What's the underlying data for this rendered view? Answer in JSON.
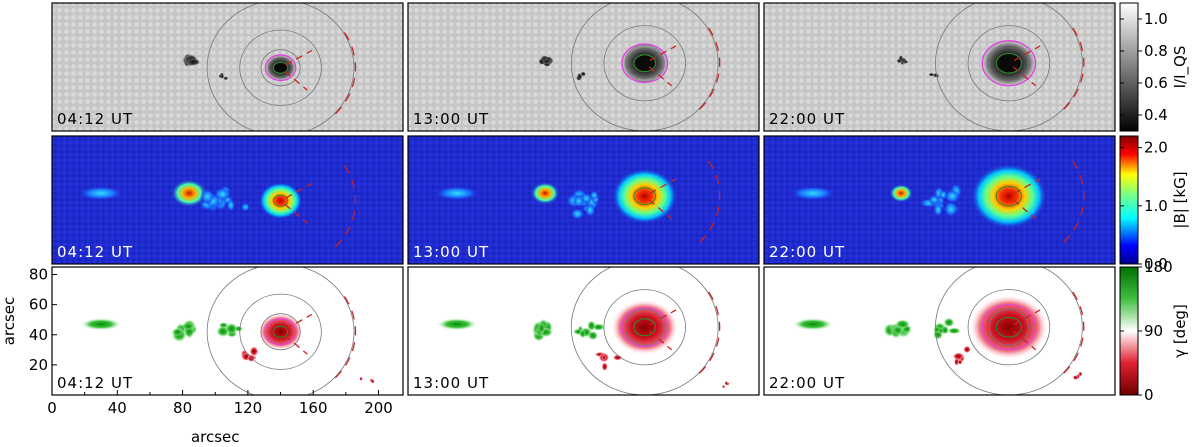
{
  "figure": {
    "rows": [
      {
        "quantity": "intensity",
        "colormap": "gray",
        "colorbar_label": "I/I_QS",
        "colorbar_ticks": [
          "1.0",
          "0.8",
          "0.6",
          "0.4"
        ],
        "range": [
          0.3,
          1.1
        ]
      },
      {
        "quantity": "field strength",
        "colormap": "jet",
        "colorbar_label": "|B| [kG]",
        "colorbar_ticks": [
          "2.0",
          "1.0",
          "0.0"
        ],
        "range": [
          0.0,
          2.2
        ]
      },
      {
        "quantity": "inclination",
        "colormap": "green-white-red",
        "colorbar_label": "γ [deg]",
        "colorbar_ticks": [
          "180",
          "90",
          "0"
        ],
        "range": [
          0,
          180
        ]
      }
    ],
    "timestamps": [
      "04:12 UT",
      "13:00 UT",
      "22:00 UT"
    ],
    "xlabel": "arcsec",
    "ylabel": "arcsec",
    "xticks": [
      "0",
      "40",
      "80",
      "120",
      "160",
      "200"
    ],
    "yticks": [
      "80",
      "60",
      "40",
      "20"
    ],
    "contour_colors": {
      "umbra": "#2b8a2b",
      "penumbra": "#e040e0",
      "arc": "#cc2222",
      "circles": "#777777"
    }
  },
  "chart_data": {
    "type": "heatmap",
    "title": "",
    "xlabel": "arcsec",
    "ylabel": "arcsec",
    "xlim": [
      0,
      215
    ],
    "ylim": [
      0,
      85
    ],
    "columns": [
      "04:12 UT",
      "13:00 UT",
      "22:00 UT"
    ],
    "rows": [
      "I/I_QS",
      "|B| [kG]",
      "γ [deg]"
    ],
    "colorbar_ranges": {
      "I/I_QS": [
        0.3,
        1.1
      ],
      "|B| [kG]": [
        0.0,
        2.2
      ],
      "γ [deg]": [
        0,
        180
      ]
    },
    "features": {
      "sunspot_center_arcsec": [
        [
          140,
          42
        ],
        [
          145,
          45
        ],
        [
          150,
          45
        ]
      ],
      "circle_radii_arcsec": [
        12,
        25,
        45
      ],
      "pore_group_centers_arcsec": [
        [
          82,
          45
        ],
        [
          30,
          47
        ]
      ]
    }
  }
}
